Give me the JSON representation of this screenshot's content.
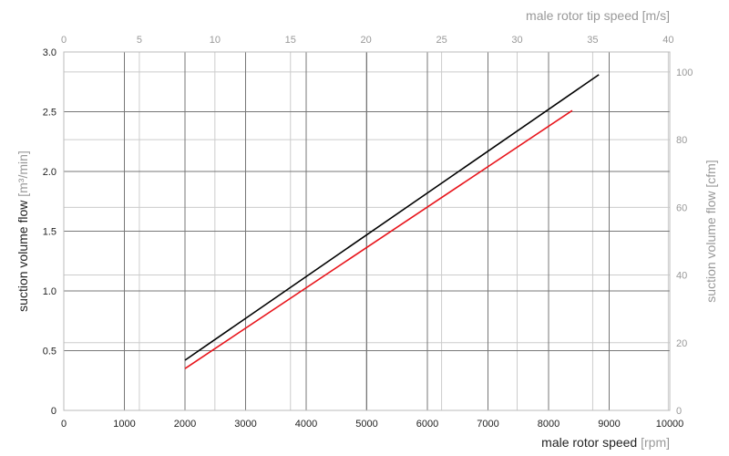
{
  "chart_data": {
    "type": "line",
    "xlabel": "male rotor speed",
    "xlabel_unit": "[rpm]",
    "ylabel": "suction volume flow",
    "ylabel_unit": "[m³/min]",
    "x2label": "male rotor tip speed [m/s]",
    "y2label": "suction volume flow [cfm]",
    "xlim": [
      0,
      10000
    ],
    "ylim": [
      0,
      3.0
    ],
    "x2lim": [
      0,
      40.1
    ],
    "y2lim": [
      0,
      105.9
    ],
    "xticks": [
      0,
      1000,
      2000,
      3000,
      4000,
      5000,
      6000,
      7000,
      8000,
      9000,
      10000
    ],
    "yticks": [
      "0",
      "0.5",
      "1.0",
      "1.5",
      "2.0",
      "2.5",
      "3.0"
    ],
    "x2ticks": [
      0,
      5,
      10,
      15,
      20,
      25,
      30,
      35,
      40
    ],
    "y2ticks": [
      0,
      20,
      40,
      60,
      80,
      100
    ],
    "grid": true,
    "series": [
      {
        "name": "black",
        "color": "#000000",
        "x": [
          2000,
          8830
        ],
        "y": [
          0.42,
          2.81
        ]
      },
      {
        "name": "red",
        "color": "#e8141b",
        "x": [
          2000,
          8390
        ],
        "y": [
          0.35,
          2.51
        ]
      }
    ]
  }
}
